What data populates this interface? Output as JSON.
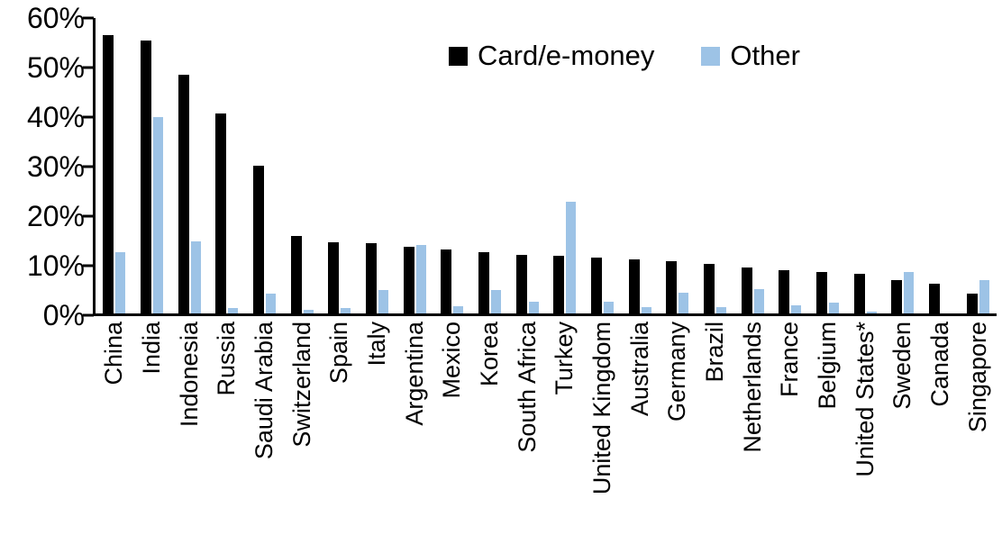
{
  "chart_data": {
    "type": "bar",
    "title": "",
    "xlabel": "",
    "ylabel": "",
    "ylim": [
      0,
      60
    ],
    "yticks": [
      0,
      10,
      20,
      30,
      40,
      50,
      60
    ],
    "ytick_labels": [
      "0%",
      "10%",
      "20%",
      "30%",
      "40%",
      "50%",
      "60%"
    ],
    "grid": false,
    "legend_position": "top-center",
    "categories": [
      "China",
      "India",
      "Indonesia",
      "Russia",
      "Saudi Arabia",
      "Switzerland",
      "Spain",
      "Italy",
      "Argentina",
      "Mexico",
      "Korea",
      "South Africa",
      "Turkey",
      "United Kingdom",
      "Australia",
      "Germany",
      "Brazil",
      "Netherlands",
      "France",
      "Belgium",
      "United States*",
      "Sweden",
      "Canada",
      "Singapore"
    ],
    "series": [
      {
        "name": "Card/e-money",
        "color": "#000000",
        "values": [
          56.2,
          55.0,
          48.2,
          40.4,
          29.8,
          15.6,
          14.3,
          14.2,
          13.5,
          12.9,
          12.3,
          11.8,
          11.6,
          11.2,
          10.9,
          10.6,
          10.0,
          9.3,
          8.7,
          8.3,
          8.0,
          6.7,
          6.0,
          4.0
        ]
      },
      {
        "name": "Other",
        "color": "#9DC3E6",
        "values": [
          12.4,
          39.7,
          14.6,
          1.0,
          4.0,
          0.8,
          1.1,
          4.7,
          13.9,
          1.4,
          4.7,
          2.4,
          22.6,
          2.3,
          1.2,
          4.2,
          1.3,
          4.9,
          1.6,
          2.1,
          0.4,
          8.3,
          0.0,
          6.7
        ]
      }
    ]
  }
}
